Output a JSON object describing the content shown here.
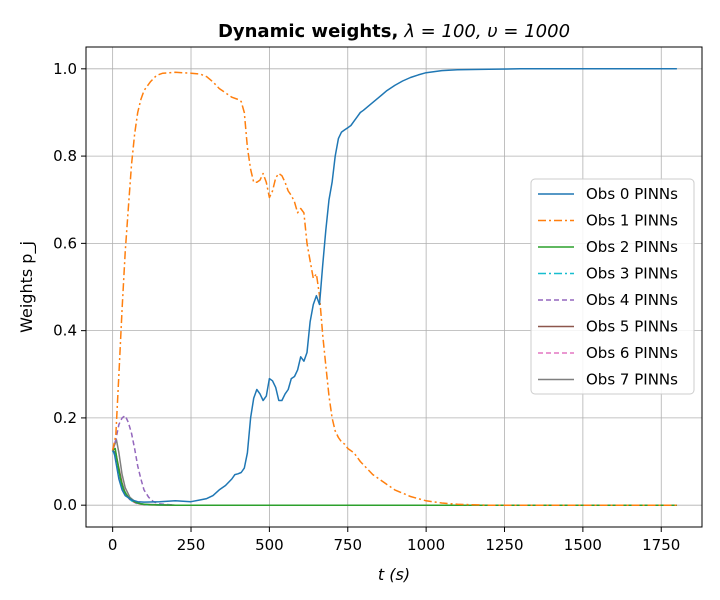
{
  "chart_data": {
    "type": "line",
    "title": "Dynamic weights, λ = 100, υ = 1000",
    "title_bold": "Dynamic weights,",
    "title_math": "λ = 100, υ = 1000",
    "xlabel": "t (s)",
    "ylabel": "Weights p_j",
    "xlim": [
      -85,
      1880
    ],
    "ylim": [
      -0.05,
      1.05
    ],
    "xticks": [
      0,
      250,
      500,
      750,
      1000,
      1250,
      1500,
      1750
    ],
    "yticks": [
      0.0,
      0.2,
      0.4,
      0.6,
      0.8,
      1.0
    ],
    "xtick_labels": [
      "0",
      "250",
      "500",
      "750",
      "1000",
      "1250",
      "1500",
      "1750"
    ],
    "ytick_labels": [
      "0.0",
      "0.2",
      "0.4",
      "0.6",
      "0.8",
      "1.0"
    ],
    "grid": true,
    "legend_position": "center-right",
    "series": [
      {
        "name": "Obs 0 PINNs",
        "color": "#1f77b4",
        "dash": "solid",
        "points": [
          [
            0,
            0.125
          ],
          [
            5,
            0.12
          ],
          [
            10,
            0.1
          ],
          [
            20,
            0.06
          ],
          [
            30,
            0.035
          ],
          [
            40,
            0.022
          ],
          [
            60,
            0.012
          ],
          [
            80,
            0.008
          ],
          [
            100,
            0.007
          ],
          [
            150,
            0.008
          ],
          [
            200,
            0.01
          ],
          [
            250,
            0.008
          ],
          [
            280,
            0.012
          ],
          [
            300,
            0.015
          ],
          [
            320,
            0.022
          ],
          [
            340,
            0.035
          ],
          [
            360,
            0.045
          ],
          [
            380,
            0.06
          ],
          [
            390,
            0.07
          ],
          [
            400,
            0.072
          ],
          [
            410,
            0.075
          ],
          [
            420,
            0.085
          ],
          [
            430,
            0.12
          ],
          [
            440,
            0.2
          ],
          [
            450,
            0.245
          ],
          [
            460,
            0.265
          ],
          [
            470,
            0.255
          ],
          [
            480,
            0.24
          ],
          [
            490,
            0.25
          ],
          [
            500,
            0.29
          ],
          [
            510,
            0.285
          ],
          [
            520,
            0.27
          ],
          [
            530,
            0.24
          ],
          [
            540,
            0.24
          ],
          [
            550,
            0.255
          ],
          [
            560,
            0.265
          ],
          [
            570,
            0.29
          ],
          [
            580,
            0.295
          ],
          [
            590,
            0.31
          ],
          [
            600,
            0.34
          ],
          [
            610,
            0.33
          ],
          [
            620,
            0.35
          ],
          [
            630,
            0.42
          ],
          [
            640,
            0.46
          ],
          [
            650,
            0.48
          ],
          [
            660,
            0.46
          ],
          [
            670,
            0.55
          ],
          [
            680,
            0.63
          ],
          [
            690,
            0.7
          ],
          [
            700,
            0.74
          ],
          [
            710,
            0.8
          ],
          [
            720,
            0.84
          ],
          [
            730,
            0.855
          ],
          [
            740,
            0.86
          ],
          [
            750,
            0.865
          ],
          [
            760,
            0.87
          ],
          [
            770,
            0.88
          ],
          [
            780,
            0.89
          ],
          [
            790,
            0.9
          ],
          [
            800,
            0.905
          ],
          [
            825,
            0.92
          ],
          [
            850,
            0.935
          ],
          [
            875,
            0.95
          ],
          [
            900,
            0.962
          ],
          [
            925,
            0.972
          ],
          [
            950,
            0.98
          ],
          [
            975,
            0.986
          ],
          [
            1000,
            0.991
          ],
          [
            1050,
            0.996
          ],
          [
            1100,
            0.998
          ],
          [
            1200,
            0.999
          ],
          [
            1300,
            1.0
          ],
          [
            1500,
            1.0
          ],
          [
            1800,
            1.0
          ]
        ]
      },
      {
        "name": "Obs 1 PINNs",
        "color": "#ff7f0e",
        "dash": "dashdot",
        "points": [
          [
            0,
            0.125
          ],
          [
            10,
            0.16
          ],
          [
            20,
            0.3
          ],
          [
            30,
            0.45
          ],
          [
            40,
            0.58
          ],
          [
            50,
            0.68
          ],
          [
            60,
            0.78
          ],
          [
            70,
            0.85
          ],
          [
            80,
            0.9
          ],
          [
            90,
            0.93
          ],
          [
            100,
            0.95
          ],
          [
            120,
            0.97
          ],
          [
            140,
            0.985
          ],
          [
            160,
            0.99
          ],
          [
            200,
            0.992
          ],
          [
            250,
            0.99
          ],
          [
            280,
            0.988
          ],
          [
            300,
            0.982
          ],
          [
            320,
            0.97
          ],
          [
            340,
            0.955
          ],
          [
            360,
            0.945
          ],
          [
            380,
            0.935
          ],
          [
            400,
            0.93
          ],
          [
            410,
            0.925
          ],
          [
            420,
            0.9
          ],
          [
            430,
            0.82
          ],
          [
            440,
            0.77
          ],
          [
            450,
            0.74
          ],
          [
            460,
            0.74
          ],
          [
            470,
            0.745
          ],
          [
            480,
            0.76
          ],
          [
            490,
            0.74
          ],
          [
            500,
            0.705
          ],
          [
            510,
            0.72
          ],
          [
            520,
            0.75
          ],
          [
            530,
            0.76
          ],
          [
            540,
            0.755
          ],
          [
            550,
            0.74
          ],
          [
            560,
            0.72
          ],
          [
            570,
            0.71
          ],
          [
            580,
            0.695
          ],
          [
            590,
            0.67
          ],
          [
            600,
            0.68
          ],
          [
            610,
            0.67
          ],
          [
            620,
            0.6
          ],
          [
            630,
            0.56
          ],
          [
            640,
            0.52
          ],
          [
            650,
            0.53
          ],
          [
            660,
            0.48
          ],
          [
            670,
            0.39
          ],
          [
            680,
            0.32
          ],
          [
            690,
            0.25
          ],
          [
            700,
            0.2
          ],
          [
            710,
            0.17
          ],
          [
            720,
            0.155
          ],
          [
            730,
            0.145
          ],
          [
            740,
            0.14
          ],
          [
            750,
            0.13
          ],
          [
            770,
            0.12
          ],
          [
            790,
            0.1
          ],
          [
            810,
            0.085
          ],
          [
            830,
            0.07
          ],
          [
            850,
            0.06
          ],
          [
            870,
            0.05
          ],
          [
            900,
            0.035
          ],
          [
            950,
            0.02
          ],
          [
            1000,
            0.01
          ],
          [
            1050,
            0.005
          ],
          [
            1100,
            0.002
          ],
          [
            1200,
            0.0
          ],
          [
            1800,
            0.0
          ]
        ]
      },
      {
        "name": "Obs 2 PINNs",
        "color": "#2ca02c",
        "dash": "solid",
        "points": [
          [
            0,
            0.125
          ],
          [
            8,
            0.13
          ],
          [
            15,
            0.1
          ],
          [
            25,
            0.06
          ],
          [
            35,
            0.035
          ],
          [
            50,
            0.018
          ],
          [
            70,
            0.008
          ],
          [
            90,
            0.003
          ],
          [
            120,
            0.001
          ],
          [
            200,
            0.0
          ],
          [
            1800,
            0.0
          ]
        ]
      },
      {
        "name": "Obs 3 PINNs",
        "color": "#17becf",
        "dash": "dashdot",
        "points": [
          [
            0,
            0.125
          ],
          [
            10,
            0.11
          ],
          [
            20,
            0.075
          ],
          [
            30,
            0.045
          ],
          [
            45,
            0.022
          ],
          [
            60,
            0.01
          ],
          [
            80,
            0.004
          ],
          [
            110,
            0.001
          ],
          [
            200,
            0.0
          ],
          [
            1800,
            0.0
          ]
        ]
      },
      {
        "name": "Obs 4 PINNs",
        "color": "#9467bd",
        "dash": "dashed",
        "points": [
          [
            0,
            0.125
          ],
          [
            10,
            0.15
          ],
          [
            20,
            0.185
          ],
          [
            30,
            0.2
          ],
          [
            40,
            0.205
          ],
          [
            50,
            0.19
          ],
          [
            60,
            0.165
          ],
          [
            70,
            0.13
          ],
          [
            80,
            0.09
          ],
          [
            90,
            0.06
          ],
          [
            100,
            0.035
          ],
          [
            115,
            0.018
          ],
          [
            130,
            0.008
          ],
          [
            150,
            0.003
          ],
          [
            200,
            0.0
          ],
          [
            1800,
            0.0
          ]
        ]
      },
      {
        "name": "Obs 5 PINNs",
        "color": "#8c564b",
        "dash": "solid",
        "points": [
          [
            0,
            0.125
          ],
          [
            10,
            0.12
          ],
          [
            20,
            0.085
          ],
          [
            30,
            0.05
          ],
          [
            40,
            0.028
          ],
          [
            55,
            0.013
          ],
          [
            75,
            0.005
          ],
          [
            100,
            0.001
          ],
          [
            200,
            0.0
          ],
          [
            1800,
            0.0
          ]
        ]
      },
      {
        "name": "Obs 6 PINNs",
        "color": "#e377c2",
        "dash": "dashed",
        "points": [
          [
            0,
            0.125
          ],
          [
            10,
            0.115
          ],
          [
            20,
            0.08
          ],
          [
            30,
            0.048
          ],
          [
            40,
            0.027
          ],
          [
            55,
            0.012
          ],
          [
            75,
            0.004
          ],
          [
            100,
            0.001
          ],
          [
            200,
            0.0
          ],
          [
            1800,
            0.0
          ]
        ]
      },
      {
        "name": "Obs 7 PINNs",
        "color": "#7f7f7f",
        "dash": "solid",
        "points": [
          [
            0,
            0.125
          ],
          [
            12,
            0.15
          ],
          [
            20,
            0.12
          ],
          [
            30,
            0.07
          ],
          [
            40,
            0.04
          ],
          [
            55,
            0.018
          ],
          [
            75,
            0.006
          ],
          [
            100,
            0.002
          ],
          [
            200,
            0.0
          ],
          [
            1800,
            0.0
          ]
        ]
      }
    ]
  }
}
